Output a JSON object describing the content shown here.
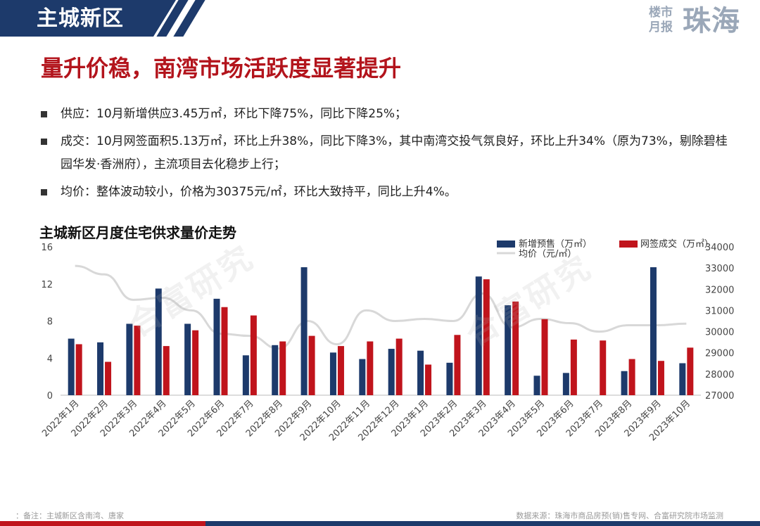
{
  "header": {
    "section_title": "主城新区",
    "brand_small": "楼市月报",
    "brand_big": "珠海"
  },
  "headline": "量升价稳，南湾市场活跃度显著提升",
  "bullets": [
    "供应：10月新增供应3.45万㎡，环比下降75%，同比下降25%；",
    "成交：10月网签面积5.13万㎡，环比上升38%，同比下降3%，其中南湾交投气氛良好，环比上升34%（原为73%，剔除碧桂园华发·香洲府），主流项目去化稳步上行；",
    "均价：整体波动较小，价格为30375元/㎡，环比大致持平，同比上升4%。"
  ],
  "watermark": "合富研究",
  "footer": {
    "note": "：备注：主城新区含南湾、唐家",
    "source": "数据来源：珠海市商品房预(销)售专网、合富研究院市场监测"
  },
  "colors": {
    "supply": "#1d3a6b",
    "deal": "#c0141c",
    "price": "#d8d8d8",
    "accent": "#b3141c"
  },
  "chart_data": {
    "type": "bar",
    "title": "主城新区月度住宅供求量价走势",
    "categories": [
      "2022年1月",
      "2022年2月",
      "2022年3月",
      "2022年4月",
      "2022年5月",
      "2022年6月",
      "2022年7月",
      "2022年8月",
      "2022年9月",
      "2022年10月",
      "2022年11月",
      "2022年12月",
      "2023年1月",
      "2023年2月",
      "2023年3月",
      "2023年4月",
      "2023年5月",
      "2023年6月",
      "2023年7月",
      "2023年8月",
      "2023年9月",
      "2023年10月"
    ],
    "series": [
      {
        "name": "新增预售（万㎡）",
        "type": "bar",
        "axis": "left",
        "values": [
          6.1,
          5.7,
          7.7,
          11.5,
          7.7,
          10.4,
          4.3,
          5.4,
          13.8,
          4.6,
          3.9,
          5.0,
          4.8,
          3.5,
          12.8,
          9.7,
          2.1,
          2.4,
          0,
          2.6,
          13.8,
          3.45
        ]
      },
      {
        "name": "网签成交（万㎡）",
        "type": "bar",
        "axis": "left",
        "values": [
          5.5,
          3.6,
          7.5,
          5.3,
          7.0,
          9.5,
          8.6,
          5.8,
          6.4,
          5.3,
          5.8,
          6.1,
          3.3,
          6.5,
          12.5,
          10.1,
          8.2,
          6.0,
          5.9,
          3.9,
          3.7,
          5.13
        ]
      },
      {
        "name": "均价（元/㎡）",
        "type": "line",
        "axis": "right",
        "values": [
          33100,
          32700,
          31500,
          31600,
          31000,
          29900,
          29800,
          29200,
          30500,
          29400,
          31000,
          30500,
          30600,
          30500,
          31800,
          30200,
          30600,
          30400,
          30000,
          30300,
          30300,
          30375
        ]
      }
    ],
    "ylim": [
      0,
      16
    ],
    "yticks": [
      0,
      4,
      8,
      12,
      16
    ],
    "y2lim": [
      27000,
      34000
    ],
    "y2ticks": [
      27000,
      28000,
      29000,
      30000,
      31000,
      32000,
      33000,
      34000
    ],
    "legend": "top-right",
    "grid": false
  }
}
